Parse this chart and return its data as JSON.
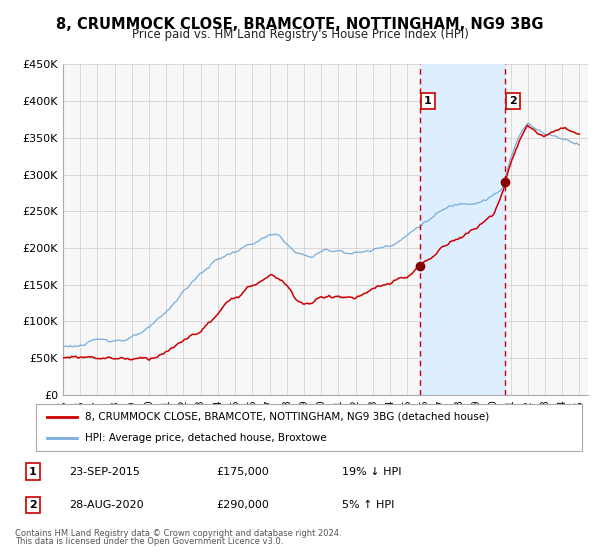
{
  "title": "8, CRUMMOCK CLOSE, BRAMCOTE, NOTTINGHAM, NG9 3BG",
  "subtitle": "Price paid vs. HM Land Registry's House Price Index (HPI)",
  "ylim": [
    0,
    450000
  ],
  "xlim_start": 1995.0,
  "xlim_end": 2025.5,
  "yticks": [
    0,
    50000,
    100000,
    150000,
    200000,
    250000,
    300000,
    350000,
    400000,
    450000
  ],
  "ytick_labels": [
    "£0",
    "£50K",
    "£100K",
    "£150K",
    "£200K",
    "£250K",
    "£300K",
    "£350K",
    "£400K",
    "£450K"
  ],
  "xticks": [
    1995,
    1996,
    1997,
    1998,
    1999,
    2000,
    2001,
    2002,
    2003,
    2004,
    2005,
    2006,
    2007,
    2008,
    2009,
    2010,
    2011,
    2012,
    2013,
    2014,
    2015,
    2016,
    2017,
    2018,
    2019,
    2020,
    2021,
    2022,
    2023,
    2024,
    2025
  ],
  "sale1_date": 2015.73,
  "sale1_price": 175000,
  "sale1_label": "23-SEP-2015",
  "sale1_hpi_diff": "19% ↓ HPI",
  "sale2_date": 2020.66,
  "sale2_price": 290000,
  "sale2_label": "28-AUG-2020",
  "sale2_hpi_diff": "5% ↑ HPI",
  "red_line_color": "#cc0000",
  "blue_line_color": "#7aaddc",
  "sale_dot_color": "#880000",
  "shaded_region_color": "#ddeeff",
  "dashed_line_color": "#cc0000",
  "legend1_label": "8, CRUMMOCK CLOSE, BRAMCOTE, NOTTINGHAM, NG9 3BG (detached house)",
  "legend2_label": "HPI: Average price, detached house, Broxtowe",
  "footer1": "Contains HM Land Registry data © Crown copyright and database right 2024.",
  "footer2": "This data is licensed under the Open Government Licence v3.0.",
  "grid_color": "#cccccc",
  "background_color": "#ffffff",
  "plot_bg_color": "#f7f7f7"
}
